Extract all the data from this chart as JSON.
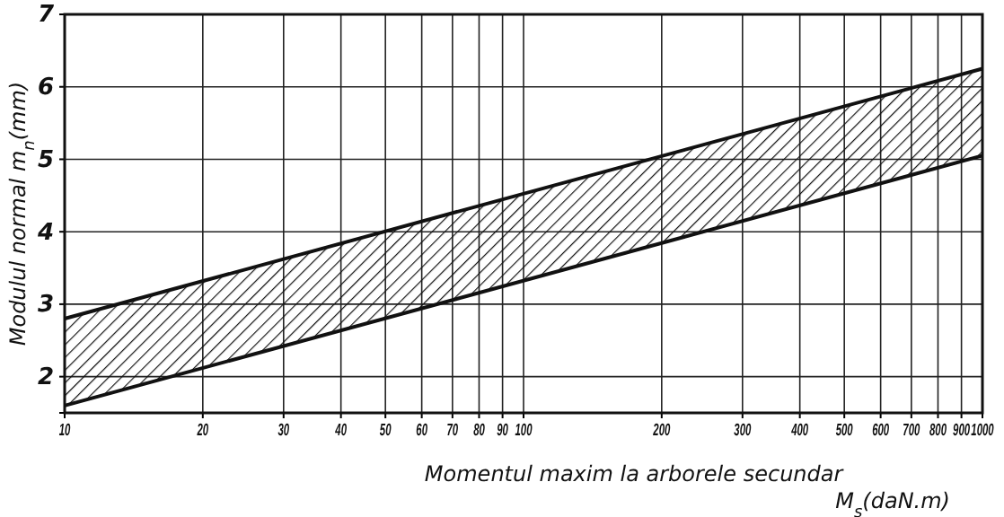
{
  "chart_data": {
    "type": "line",
    "xlabel": "Momentul maxim la arborele secundar\nM$_{s}$(daN.m)",
    "ylabel": "Modulul normal m$_{n}$(mm)",
    "x": [
      10,
      1000
    ],
    "series": [
      {
        "color": "#111111",
        "values": [
          2.8,
          6.25
        ],
        "lower": [
          1.6,
          5.05
        ],
        "upper": [
          2.8,
          6.25
        ]
      },
      {
        "color": "#111111",
        "values": [
          1.6,
          5.05
        ]
      }
    ],
    "xlim": [
      10,
      1000
    ],
    "xticks": [
      10,
      20,
      30,
      40,
      50,
      60,
      70,
      80,
      90,
      100,
      200,
      300,
      400,
      500,
      600,
      700,
      800,
      900,
      1000
    ],
    "ylim": [
      1.5,
      7
    ],
    "yticks": [
      2,
      3,
      4,
      5,
      6,
      7
    ],
    "grid": true,
    "log": "x",
    "line_style": "solid",
    "marker": "none"
  }
}
